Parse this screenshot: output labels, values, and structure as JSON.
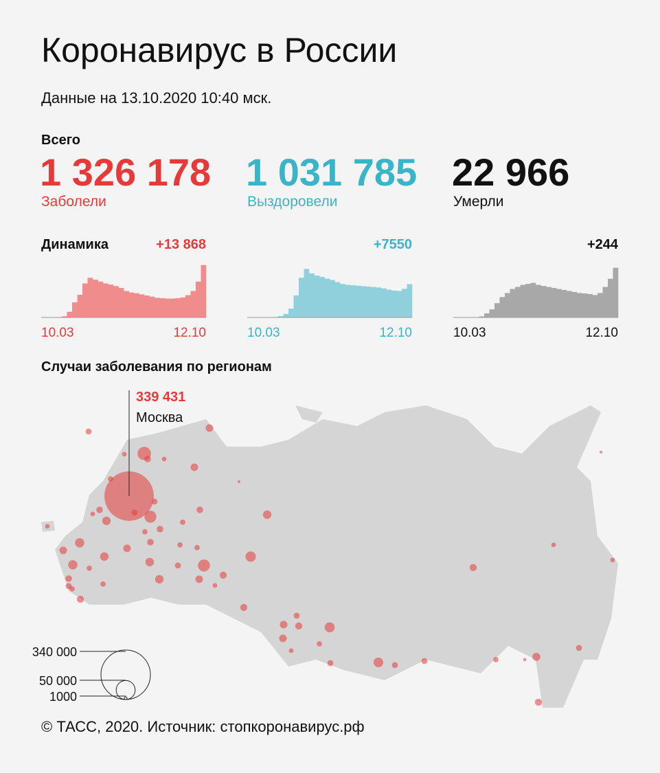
{
  "header": {
    "title": "Коронавирус в России",
    "subtitle": "Данные на 13.10.2020 10:40 мск."
  },
  "totals": {
    "heading": "Всего",
    "items": [
      {
        "value": "1 326 178",
        "label": "Заболели",
        "color": "#e63a3a"
      },
      {
        "value": "1 031 785",
        "label": "Выздоровели",
        "color": "#3ab4c8"
      },
      {
        "value": "22 966",
        "label": "Умерли",
        "color": "#111111"
      }
    ]
  },
  "dynamics": {
    "heading": "Динамика",
    "charts": [
      {
        "type": "bar",
        "last": "+13 868",
        "color": "#e63a3a",
        "fill": "#f08c8c",
        "categories": [
          "10.03",
          "12.10"
        ],
        "ylim": [
          0,
          14000
        ],
        "values": [
          0,
          5,
          20,
          70,
          300,
          1500,
          4000,
          6000,
          9000,
          10500,
          10000,
          9500,
          9000,
          8700,
          8300,
          7800,
          7000,
          6600,
          6400,
          6100,
          5800,
          5500,
          5200,
          5100,
          5000,
          5000,
          5100,
          5300,
          5900,
          7000,
          9500,
          13868
        ]
      },
      {
        "type": "bar",
        "last": "+7550",
        "color": "#3ab4c8",
        "fill": "#8fd0dc",
        "categories": [
          "10.03",
          "12.10"
        ],
        "ylim": [
          0,
          12000
        ],
        "values": [
          0,
          0,
          0,
          5,
          20,
          100,
          300,
          800,
          2000,
          5000,
          9000,
          11000,
          10000,
          9500,
          9200,
          8800,
          8500,
          8000,
          7600,
          7400,
          7300,
          7200,
          7100,
          7000,
          6900,
          6800,
          6600,
          6300,
          6100,
          6000,
          6500,
          7550
        ]
      },
      {
        "type": "bar",
        "last": "+244",
        "color": "#111111",
        "fill": "#a8a8a8",
        "categories": [
          "10.03",
          "12.10"
        ],
        "ylim": [
          0,
          260
        ],
        "values": [
          0,
          0,
          0,
          0,
          1,
          5,
          20,
          40,
          70,
          100,
          120,
          140,
          150,
          160,
          165,
          170,
          160,
          155,
          150,
          145,
          140,
          135,
          130,
          125,
          120,
          118,
          115,
          110,
          120,
          150,
          190,
          244
        ]
      }
    ]
  },
  "map": {
    "heading": "Случаи заболевания по регионам",
    "highlight": {
      "value": 339431,
      "value_label": "339 431",
      "name": "Москва"
    },
    "region_cases": [
      25000,
      8000,
      8000,
      3000,
      5000,
      4000,
      6000,
      3000,
      6000,
      10000,
      20000,
      6000,
      10000,
      6000,
      3000,
      3000,
      12000,
      8000,
      12000,
      6000,
      5000,
      4000,
      7000,
      4000,
      4000,
      10000,
      8000,
      6000,
      10000,
      10000,
      5000,
      4000,
      4000,
      20000,
      8000,
      3000,
      7000,
      15000,
      7000,
      8000,
      5000,
      7000,
      14000,
      8000,
      4000,
      3000,
      5000,
      13000,
      5000,
      5000,
      7000,
      4000,
      1500,
      9000,
      7000,
      5000,
      3000,
      3000,
      1000,
      1000,
      4000,
      5000,
      5000,
      4000
    ],
    "legend": [
      {
        "value": 340000,
        "label": "340 000"
      },
      {
        "value": 50000,
        "label": "50 000"
      },
      {
        "value": 1000,
        "label": "1000"
      }
    ]
  },
  "footer": "© ТАСС, 2020. Источник: стопкоронавирус.рф"
}
